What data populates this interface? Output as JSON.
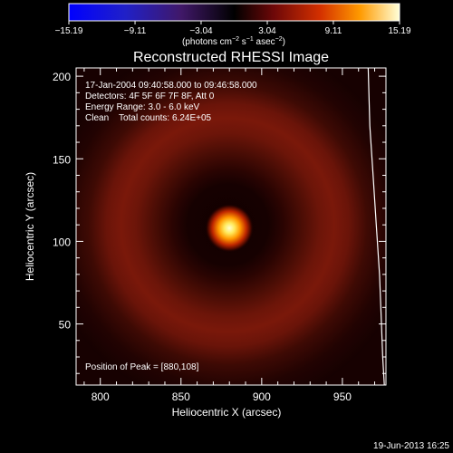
{
  "chart_data": {
    "type": "heatmap",
    "title": "Reconstructed RHESSI Image",
    "xlabel": "Heliocentric X (arcsec)",
    "ylabel": "Heliocentric Y (arcsec)",
    "xlim": [
      785,
      977
    ],
    "ylim": [
      13,
      205
    ],
    "x_ticks": [
      {
        "value": 800,
        "label": "800"
      },
      {
        "value": 850,
        "label": "850"
      },
      {
        "value": 900,
        "label": "900"
      },
      {
        "value": 950,
        "label": "950"
      }
    ],
    "y_ticks": [
      {
        "value": 50,
        "label": "50"
      },
      {
        "value": 100,
        "label": "100"
      },
      {
        "value": 150,
        "label": "150"
      },
      {
        "value": 200,
        "label": "200"
      }
    ],
    "colorbar": {
      "min": -15.19,
      "max": 15.19,
      "ticks": [
        {
          "value": -15.19,
          "label": "−15.19"
        },
        {
          "value": -9.11,
          "label": "−9.11"
        },
        {
          "value": -3.04,
          "label": "−3.04"
        },
        {
          "value": 3.04,
          "label": "3.04"
        },
        {
          "value": 9.11,
          "label": "9.11"
        },
        {
          "value": 15.19,
          "label": "15.19"
        }
      ],
      "unit_label": {
        "open": "(photons cm",
        "sup1": "−2",
        "mid1": " s",
        "sup2": "−1",
        "mid2": " asec",
        "sup3": "−2",
        "close": ")"
      }
    },
    "annotations": [
      "17-Jan-2004 09:40:58.000 to 09:46:58.000",
      "Detectors: 4F 5F 6F 7F 8F, Att 0",
      "Energy Range: 3.0 - 6.0 keV",
      "Clean    Total counts: 6.24E+05"
    ],
    "peak": {
      "x": 880,
      "y": 108,
      "label": "Position of Peak = [880,108]"
    },
    "ring": {
      "center_x": 879,
      "center_y": 110,
      "radius_arcsec": 72,
      "width_arcsec": 19
    },
    "limb_curve": [
      [
        966,
        205
      ],
      [
        967,
        170
      ],
      [
        969,
        140
      ],
      [
        971,
        110
      ],
      [
        973,
        80
      ],
      [
        974,
        55
      ],
      [
        975,
        30
      ],
      [
        976,
        13
      ]
    ],
    "timestamp": "19-Jun-2013 16:25"
  }
}
